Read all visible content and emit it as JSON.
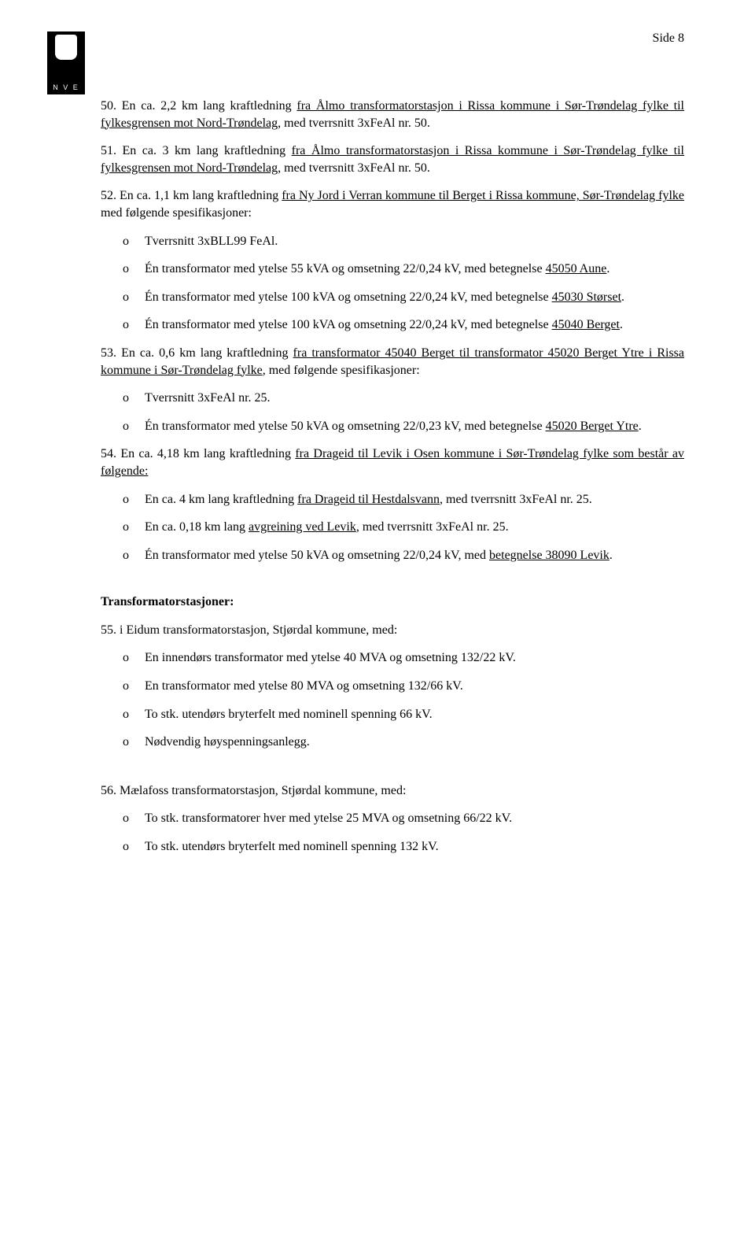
{
  "logo_label": "N V E",
  "page_number": "Side 8",
  "items": [
    {
      "num": "50.",
      "pre": "En ca. 2,2 km lang kraftledning ",
      "u": "fra Ålmo transformatorstasjon i Rissa kommune i Sør-Trøndelag fylke til fylkesgrensen mot Nord-Trøndelag",
      "post": ", med tverrsnitt 3xFeAl nr. 50."
    },
    {
      "num": "51.",
      "pre": "En ca. 3 km lang kraftledning ",
      "u": "fra Ålmo transformatorstasjon i Rissa kommune i Sør-Trøndelag fylke til fylkesgrensen mot Nord-Trøndelag",
      "post": ", med tverrsnitt 3xFeAl nr. 50."
    },
    {
      "num": "52.",
      "pre": "En ca. 1,1 km lang kraftledning ",
      "u": "fra Ny Jord i Verran kommune til Berget i Rissa kommune, Sør-Trøndelag fylke",
      "post": " med følgende spesifikasjoner:",
      "subs": [
        {
          "pre": "Tverrsnitt 3xBLL99 FeAl.",
          "u": "",
          "post": ""
        },
        {
          "pre": "Én transformator med ytelse 55 kVA og omsetning 22/0,24 kV, med betegnelse ",
          "u": "45050 Aune",
          "post": "."
        },
        {
          "pre": "Én transformator med ytelse 100 kVA og omsetning 22/0,24 kV, med betegnelse ",
          "u": "45030 Størset",
          "post": "."
        },
        {
          "pre": "Én transformator med ytelse 100 kVA og omsetning 22/0,24 kV, med betegnelse ",
          "u": "45040 Berget",
          "post": "."
        }
      ]
    },
    {
      "num": "53.",
      "pre": "En ca. 0,6 km lang kraftledning ",
      "u": "fra transformator 45040 Berget til transformator 45020 Berget Ytre i Rissa kommune i Sør-Trøndelag fylke",
      "post": ", med følgende spesifikasjoner:",
      "subs": [
        {
          "pre": "Tverrsnitt 3xFeAl nr. 25.",
          "u": "",
          "post": ""
        },
        {
          "pre": "Én transformator med ytelse 50 kVA og omsetning 22/0,23 kV, med betegnelse ",
          "u": "45020 Berget Ytre",
          "post": "."
        }
      ]
    },
    {
      "num": "54.",
      "pre": "En ca. 4,18 km lang kraftledning ",
      "u": "fra Drageid til Levik i Osen kommune i Sør-Trøndelag fylke som består av følgende:",
      "post": "",
      "subs": [
        {
          "pre": "En ca. 4 km lang kraftledning ",
          "u": "fra Drageid til Hestdalsvann",
          "post": ", med tverrsnitt 3xFeAl nr. 25."
        },
        {
          "pre": "En ca. 0,18 km lang ",
          "u": "avgreining ved Levik",
          "post": ", med tverrsnitt 3xFeAl nr. 25."
        },
        {
          "pre": "Én transformator med ytelse 50 kVA og omsetning 22/0,24 kV, med ",
          "u": "betegnelse 38090 Levik",
          "post": "."
        }
      ]
    }
  ],
  "section_title": "Transformatorstasjoner:",
  "stations": [
    {
      "num": "55.",
      "text": "i Eidum transformatorstasjon, Stjørdal kommune, med:",
      "subs": [
        "En innendørs transformator med ytelse 40 MVA og omsetning 132/22 kV.",
        "En transformator med ytelse 80 MVA og omsetning 132/66 kV.",
        "To stk. utendørs bryterfelt med nominell spenning 66 kV.",
        "Nødvendig høyspenningsanlegg."
      ]
    },
    {
      "num": "56.",
      "text": "Mælafoss transformatorstasjon, Stjørdal kommune, med:",
      "subs": [
        "To stk. transformatorer hver med ytelse 25 MVA og omsetning 66/22 kV.",
        "To stk. utendørs bryterfelt med nominell spenning 132 kV."
      ]
    }
  ],
  "bullet_char": "o"
}
